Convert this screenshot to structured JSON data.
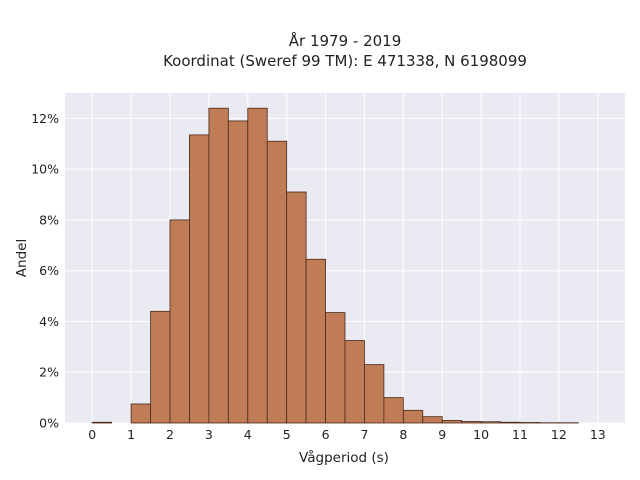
{
  "chart_data": {
    "type": "bar",
    "title_lines": [
      "År 1979 - 2019",
      "Koordinat (Sweref 99 TM): E 471338, N 6198099"
    ],
    "xlabel": "Vågperiod (s)",
    "ylabel": "Andel",
    "bin_width": 0.5,
    "bin_starts": [
      0,
      0.5,
      1,
      1.5,
      2,
      2.5,
      3,
      3.5,
      4,
      4.5,
      5,
      5.5,
      6,
      6.5,
      7,
      7.5,
      8,
      8.5,
      9,
      9.5,
      10,
      10.5,
      11,
      11.5,
      12
    ],
    "values": [
      0.03,
      0.0,
      0.75,
      4.4,
      8.0,
      11.35,
      12.4,
      11.9,
      12.4,
      11.1,
      9.1,
      6.45,
      4.35,
      3.25,
      2.3,
      1.0,
      0.5,
      0.25,
      0.1,
      0.06,
      0.05,
      0.03,
      0.02,
      0.01,
      0.01
    ],
    "xlim": [
      -0.7,
      13.7
    ],
    "ylim": [
      0,
      13
    ],
    "xticks": [
      0,
      1,
      2,
      3,
      4,
      5,
      6,
      7,
      8,
      9,
      10,
      11,
      12,
      13
    ],
    "xtick_labels": [
      "0",
      "1",
      "2",
      "3",
      "4",
      "5",
      "6",
      "7",
      "8",
      "9",
      "10",
      "11",
      "12",
      "13"
    ],
    "yticks": [
      0,
      2,
      4,
      6,
      8,
      10,
      12
    ],
    "ytick_labels": [
      "0%",
      "2%",
      "4%",
      "6%",
      "8%",
      "10%",
      "12%"
    ],
    "grid": true,
    "colors": {
      "bar_fill": "#bf7c56",
      "bar_edge": "#4a2a18",
      "plot_bg": "#eaeaf2",
      "grid": "#ffffff"
    }
  }
}
